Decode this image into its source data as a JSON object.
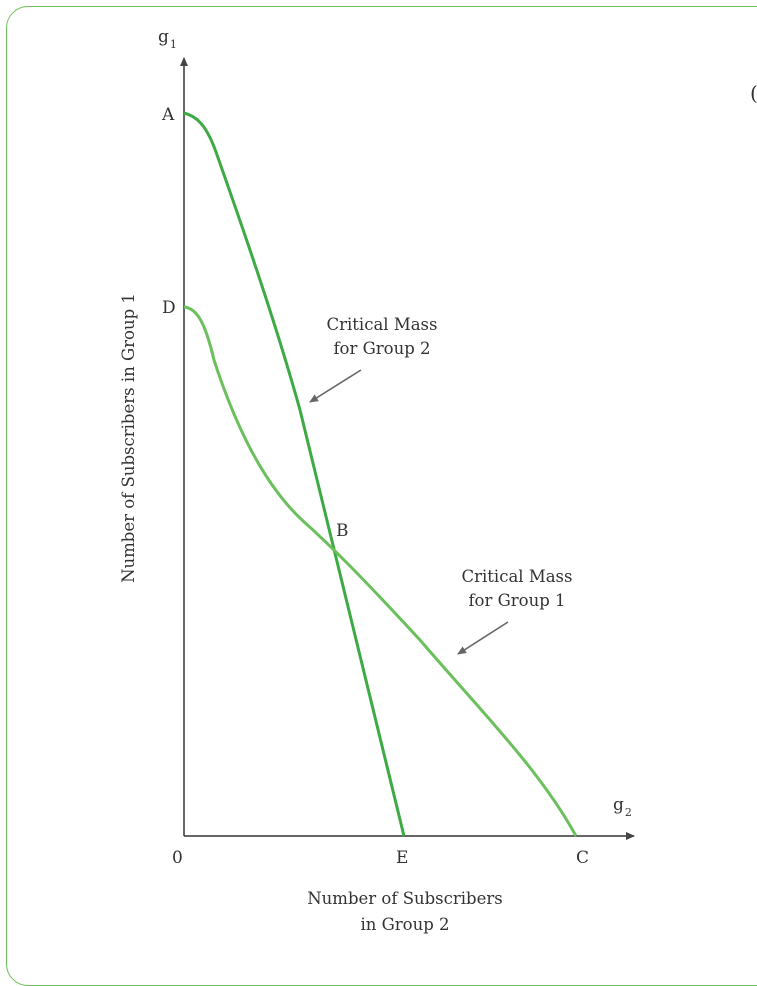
{
  "chart_data": {
    "type": "line",
    "title": "",
    "x_axis": {
      "symbol": "g",
      "subscript": "2",
      "label_line1": "Number of Subscribers",
      "label_line2": "in Group 2"
    },
    "y_axis": {
      "symbol": "g",
      "subscript": "1",
      "label": "Number of Subscribers in Group 1"
    },
    "origin_label": "0",
    "points": {
      "A": "A",
      "B": "B",
      "C": "C",
      "D": "D",
      "E": "E"
    },
    "series": [
      {
        "name": "Critical Mass for Group 2",
        "from": "A",
        "to": "E",
        "color": "#3eaa44"
      },
      {
        "name": "Critical Mass for Group 1",
        "from": "D",
        "to": "C",
        "color": "#6bbf5c"
      }
    ],
    "annotations": [
      {
        "line1": "Critical Mass",
        "line2": "for Group 2"
      },
      {
        "line1": "Critical Mass",
        "line2": "for Group 1"
      }
    ]
  },
  "partial_glyph": "("
}
